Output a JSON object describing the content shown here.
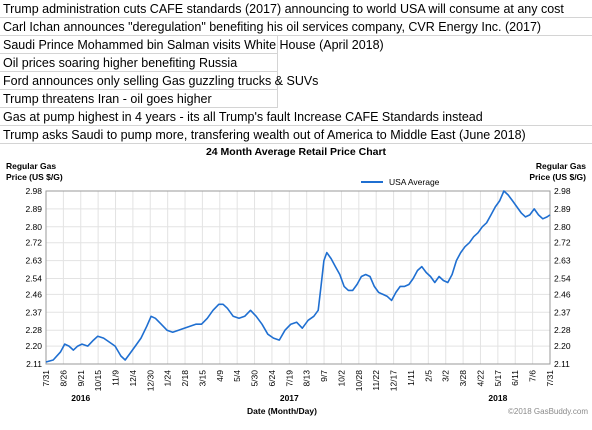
{
  "headlines": [
    "Trump administration cuts CAFE standards (2017) announcing to world USA will consume at any cost",
    "Carl Ichan announces \"deregulation\" benefiting his oil services company, CVR Energy Inc. (2017)",
    "Saudi Prince Mohammed bin Salman visits White House (April 2018)",
    "Oil prices soaring higher benefiting Russia",
    "Ford announces only selling Gas guzzling trucks & SUVs",
    "Trump threatens Iran - oil goes higher",
    "Gas at pump highest in 4 years - its all Trump's fault    Increase CAFE Standards instead",
    "Trump asks Saudi to pump more, transfering wealth out of America to Middle East (June 2018)"
  ],
  "chart_data": {
    "type": "line",
    "title": "24 Month Average Retail Price Chart",
    "ylabel_left": [
      "Regular Gas",
      "Price (US $/G)"
    ],
    "ylabel_right": [
      "Regular Gas",
      "Price (US $/G)"
    ],
    "xlabel": "Date (Month/Day)",
    "ylim": [
      2.11,
      2.98
    ],
    "yticks": [
      "2.98",
      "2.89",
      "2.80",
      "2.72",
      "2.63",
      "2.54",
      "2.46",
      "2.37",
      "2.28",
      "2.20",
      "2.11"
    ],
    "x_tick_labels": [
      "7/31",
      "8/26",
      "9/21",
      "10/15",
      "11/9",
      "12/4",
      "12/30",
      "1/24",
      "2/18",
      "3/15",
      "4/9",
      "5/4",
      "5/30",
      "6/24",
      "7/19",
      "8/13",
      "9/7",
      "10/2",
      "10/28",
      "11/22",
      "12/17",
      "1/11",
      "2/5",
      "3/2",
      "3/28",
      "4/22",
      "5/17",
      "6/11",
      "7/6",
      "7/31"
    ],
    "year_labels": [
      {
        "label": "2016",
        "tick_index": 2
      },
      {
        "label": "2017",
        "tick_index": 14
      },
      {
        "label": "2018",
        "tick_index": 26
      }
    ],
    "legend": "top-center",
    "grid": true,
    "credit": "©2018 GasBuddy.com",
    "series": [
      {
        "name": "USA Average",
        "color": "#1f6fd1",
        "points": [
          [
            0,
            2.12
          ],
          [
            0.5,
            2.13
          ],
          [
            1,
            2.17
          ],
          [
            1.3,
            2.21
          ],
          [
            1.6,
            2.2
          ],
          [
            1.9,
            2.18
          ],
          [
            2.2,
            2.2
          ],
          [
            2.5,
            2.21
          ],
          [
            2.9,
            2.2
          ],
          [
            3.3,
            2.23
          ],
          [
            3.6,
            2.25
          ],
          [
            4,
            2.24
          ],
          [
            4.4,
            2.22
          ],
          [
            4.8,
            2.2
          ],
          [
            5.2,
            2.15
          ],
          [
            5.5,
            2.13
          ],
          [
            5.8,
            2.16
          ],
          [
            6.2,
            2.2
          ],
          [
            6.6,
            2.24
          ],
          [
            7,
            2.3
          ],
          [
            7.3,
            2.35
          ],
          [
            7.6,
            2.34
          ],
          [
            8,
            2.31
          ],
          [
            8.4,
            2.28
          ],
          [
            8.8,
            2.27
          ],
          [
            9.2,
            2.28
          ],
          [
            9.6,
            2.29
          ],
          [
            10,
            2.3
          ],
          [
            10.4,
            2.31
          ],
          [
            10.8,
            2.31
          ],
          [
            11.2,
            2.34
          ],
          [
            11.6,
            2.38
          ],
          [
            12,
            2.41
          ],
          [
            12.3,
            2.41
          ],
          [
            12.6,
            2.39
          ],
          [
            13,
            2.35
          ],
          [
            13.4,
            2.34
          ],
          [
            13.8,
            2.35
          ],
          [
            14.2,
            2.38
          ],
          [
            14.6,
            2.35
          ],
          [
            15,
            2.31
          ],
          [
            15.4,
            2.26
          ],
          [
            15.8,
            2.24
          ],
          [
            16.2,
            2.23
          ],
          [
            16.6,
            2.28
          ],
          [
            17,
            2.31
          ],
          [
            17.4,
            2.32
          ],
          [
            17.8,
            2.29
          ],
          [
            18.2,
            2.33
          ],
          [
            18.6,
            2.35
          ],
          [
            18.9,
            2.38
          ],
          [
            19.1,
            2.5
          ],
          [
            19.3,
            2.63
          ],
          [
            19.5,
            2.67
          ],
          [
            19.8,
            2.64
          ],
          [
            20.1,
            2.6
          ],
          [
            20.4,
            2.56
          ],
          [
            20.7,
            2.5
          ],
          [
            21,
            2.48
          ],
          [
            21.3,
            2.48
          ],
          [
            21.6,
            2.51
          ],
          [
            21.9,
            2.55
          ],
          [
            22.2,
            2.56
          ],
          [
            22.5,
            2.55
          ],
          [
            22.8,
            2.5
          ],
          [
            23.1,
            2.47
          ],
          [
            23.4,
            2.46
          ],
          [
            23.7,
            2.45
          ],
          [
            24,
            2.43
          ],
          [
            24.3,
            2.47
          ],
          [
            24.6,
            2.5
          ],
          [
            24.9,
            2.5
          ],
          [
            25.2,
            2.51
          ],
          [
            25.5,
            2.54
          ],
          [
            25.8,
            2.58
          ],
          [
            26.1,
            2.6
          ],
          [
            26.4,
            2.57
          ],
          [
            26.7,
            2.55
          ],
          [
            27,
            2.52
          ],
          [
            27.3,
            2.55
          ],
          [
            27.6,
            2.53
          ],
          [
            27.9,
            2.52
          ],
          [
            28.2,
            2.56
          ],
          [
            28.5,
            2.63
          ],
          [
            28.8,
            2.67
          ],
          [
            29.1,
            2.7
          ],
          [
            29.4,
            2.72
          ],
          [
            29.7,
            2.75
          ],
          [
            30,
            2.77
          ],
          [
            30.3,
            2.8
          ],
          [
            30.6,
            2.82
          ],
          [
            30.9,
            2.86
          ],
          [
            31.2,
            2.9
          ],
          [
            31.5,
            2.93
          ],
          [
            31.8,
            2.98
          ],
          [
            32.1,
            2.96
          ],
          [
            32.4,
            2.93
          ],
          [
            32.7,
            2.9
          ],
          [
            33,
            2.87
          ],
          [
            33.3,
            2.85
          ],
          [
            33.6,
            2.86
          ],
          [
            33.9,
            2.89
          ],
          [
            34.2,
            2.86
          ],
          [
            34.5,
            2.84
          ],
          [
            34.8,
            2.85
          ],
          [
            35,
            2.86
          ]
        ]
      }
    ]
  }
}
